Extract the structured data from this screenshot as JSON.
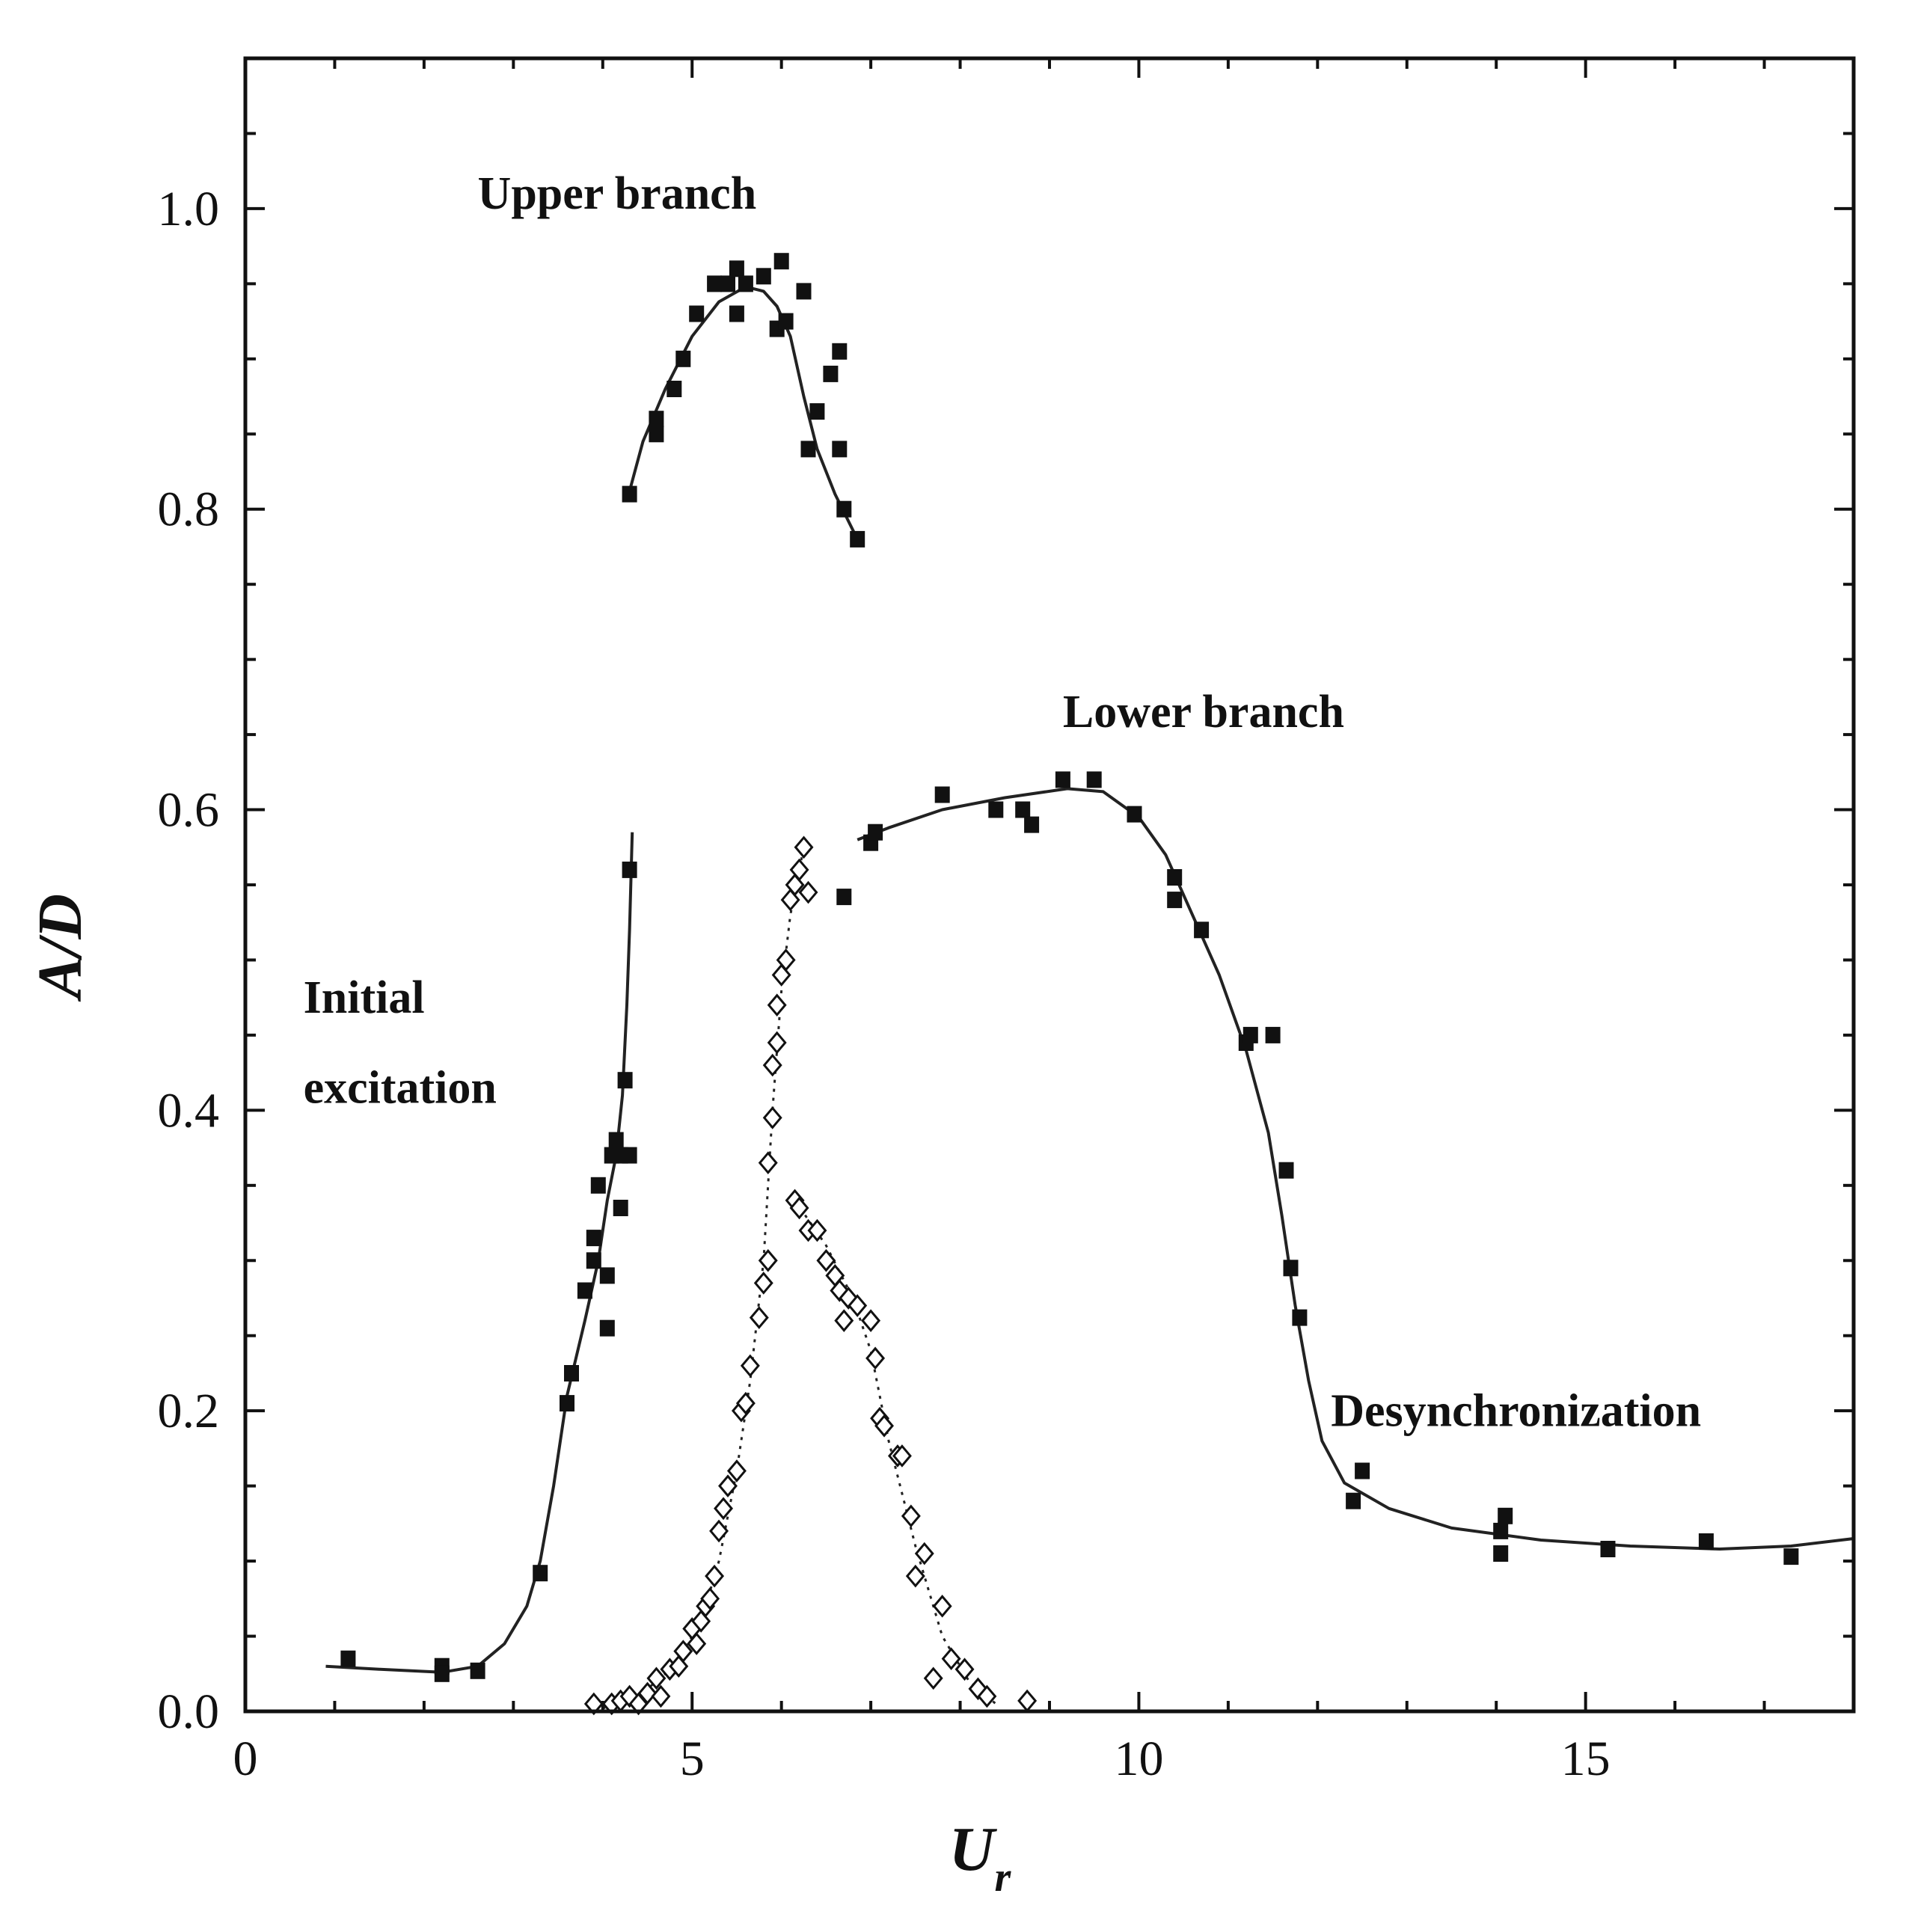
{
  "chart_data": {
    "type": "scatter",
    "xlim": [
      0,
      18
    ],
    "ylim": [
      0,
      1.1
    ],
    "x_ticks": [
      0,
      5,
      10,
      15
    ],
    "x_tick_labels": [
      "0",
      "5",
      "10",
      "15"
    ],
    "y_ticks": [
      0,
      0.2,
      0.4,
      0.6,
      0.8,
      1.0
    ],
    "y_tick_labels": [
      "0.0",
      "0.2",
      "0.4",
      "0.6",
      "0.8",
      "1.0"
    ],
    "xlabel": "U",
    "xlabel_sub": "r",
    "ylabel": "A/D",
    "grid": false,
    "annotations": [
      {
        "text": "Upper branch",
        "x": 2.6,
        "y": 1.0
      },
      {
        "text": "Lower branch",
        "x": 9.15,
        "y": 0.655
      },
      {
        "text": "Initial",
        "x": 0.65,
        "y": 0.465
      },
      {
        "text": "excitation",
        "x": 0.65,
        "y": 0.405
      },
      {
        "text": "Desynchronization",
        "x": 12.15,
        "y": 0.19
      }
    ],
    "series": [
      {
        "marker": "filled-square",
        "values": [
          [
            1.15,
            0.035
          ],
          [
            2.2,
            0.03
          ],
          [
            2.2,
            0.025
          ],
          [
            2.6,
            0.027
          ],
          [
            3.3,
            0.092
          ],
          [
            3.6,
            0.205
          ],
          [
            3.65,
            0.225
          ],
          [
            3.8,
            0.28
          ],
          [
            3.9,
            0.315
          ],
          [
            3.9,
            0.3
          ],
          [
            3.95,
            0.35
          ],
          [
            4.05,
            0.255
          ],
          [
            4.05,
            0.29
          ],
          [
            4.1,
            0.37
          ],
          [
            4.15,
            0.38
          ],
          [
            4.2,
            0.335
          ],
          [
            4.2,
            0.37
          ],
          [
            4.25,
            0.42
          ],
          [
            4.3,
            0.37
          ],
          [
            4.3,
            0.56
          ],
          [
            4.3,
            0.81
          ],
          [
            4.6,
            0.86
          ],
          [
            4.6,
            0.85
          ],
          [
            4.8,
            0.88
          ],
          [
            4.9,
            0.9
          ],
          [
            5.05,
            0.93
          ],
          [
            5.25,
            0.95
          ],
          [
            5.4,
            0.95
          ],
          [
            5.5,
            0.93
          ],
          [
            5.5,
            0.96
          ],
          [
            5.6,
            0.95
          ],
          [
            5.8,
            0.955
          ],
          [
            5.95,
            0.92
          ],
          [
            6.0,
            0.965
          ],
          [
            6.05,
            0.925
          ],
          [
            6.25,
            0.945
          ],
          [
            6.3,
            0.84
          ],
          [
            6.4,
            0.865
          ],
          [
            6.55,
            0.89
          ],
          [
            6.65,
            0.905
          ],
          [
            6.65,
            0.84
          ],
          [
            6.7,
            0.8
          ],
          [
            6.85,
            0.78
          ],
          [
            6.7,
            0.542
          ],
          [
            7.0,
            0.578
          ],
          [
            7.05,
            0.585
          ],
          [
            7.8,
            0.61
          ],
          [
            8.4,
            0.6
          ],
          [
            8.7,
            0.6
          ],
          [
            8.8,
            0.59
          ],
          [
            9.15,
            0.62
          ],
          [
            9.5,
            0.62
          ],
          [
            9.95,
            0.597
          ],
          [
            10.4,
            0.555
          ],
          [
            10.4,
            0.54
          ],
          [
            10.7,
            0.52
          ],
          [
            11.2,
            0.445
          ],
          [
            11.25,
            0.45
          ],
          [
            11.5,
            0.45
          ],
          [
            11.65,
            0.36
          ],
          [
            11.7,
            0.295
          ],
          [
            11.8,
            0.262
          ],
          [
            12.4,
            0.14
          ],
          [
            12.5,
            0.16
          ],
          [
            14.05,
            0.12
          ],
          [
            14.05,
            0.105
          ],
          [
            14.1,
            0.13
          ],
          [
            15.25,
            0.108
          ],
          [
            16.35,
            0.113
          ],
          [
            17.3,
            0.103
          ]
        ]
      },
      {
        "marker": "open-diamond",
        "values": [
          [
            3.9,
            0.005
          ],
          [
            4.1,
            0.005
          ],
          [
            4.2,
            0.007
          ],
          [
            4.3,
            0.01
          ],
          [
            4.4,
            0.005
          ],
          [
            4.5,
            0.012
          ],
          [
            4.6,
            0.022
          ],
          [
            4.65,
            0.01
          ],
          [
            4.75,
            0.028
          ],
          [
            4.85,
            0.03
          ],
          [
            4.9,
            0.04
          ],
          [
            5.0,
            0.055
          ],
          [
            5.05,
            0.045
          ],
          [
            5.1,
            0.06
          ],
          [
            5.15,
            0.07
          ],
          [
            5.2,
            0.075
          ],
          [
            5.25,
            0.09
          ],
          [
            5.3,
            0.12
          ],
          [
            5.35,
            0.135
          ],
          [
            5.4,
            0.15
          ],
          [
            5.5,
            0.16
          ],
          [
            5.55,
            0.2
          ],
          [
            5.6,
            0.205
          ],
          [
            5.65,
            0.23
          ],
          [
            5.75,
            0.262
          ],
          [
            5.8,
            0.285
          ],
          [
            5.85,
            0.3
          ],
          [
            5.85,
            0.365
          ],
          [
            5.9,
            0.395
          ],
          [
            5.9,
            0.43
          ],
          [
            5.95,
            0.445
          ],
          [
            5.95,
            0.47
          ],
          [
            6.0,
            0.49
          ],
          [
            6.05,
            0.5
          ],
          [
            6.1,
            0.54
          ],
          [
            6.15,
            0.55
          ],
          [
            6.2,
            0.56
          ],
          [
            6.25,
            0.575
          ],
          [
            6.3,
            0.545
          ],
          [
            6.15,
            0.34
          ],
          [
            6.2,
            0.335
          ],
          [
            6.3,
            0.32
          ],
          [
            6.4,
            0.32
          ],
          [
            6.5,
            0.3
          ],
          [
            6.6,
            0.29
          ],
          [
            6.65,
            0.28
          ],
          [
            6.7,
            0.26
          ],
          [
            6.75,
            0.275
          ],
          [
            6.85,
            0.27
          ],
          [
            7.0,
            0.26
          ],
          [
            7.05,
            0.235
          ],
          [
            7.1,
            0.195
          ],
          [
            7.15,
            0.19
          ],
          [
            7.3,
            0.17
          ],
          [
            7.35,
            0.17
          ],
          [
            7.45,
            0.13
          ],
          [
            7.5,
            0.09
          ],
          [
            7.6,
            0.105
          ],
          [
            7.7,
            0.022
          ],
          [
            7.8,
            0.07
          ],
          [
            7.9,
            0.035
          ],
          [
            8.05,
            0.028
          ],
          [
            8.2,
            0.015
          ],
          [
            8.3,
            0.01
          ],
          [
            8.75,
            0.007
          ]
        ]
      }
    ],
    "curves": [
      {
        "name": "",
        "style": "solid",
        "values": [
          [
            0.9,
            0.03
          ],
          [
            1.5,
            0.028
          ],
          [
            2.2,
            0.026
          ],
          [
            2.6,
            0.03
          ],
          [
            2.9,
            0.045
          ],
          [
            3.15,
            0.07
          ],
          [
            3.3,
            0.1
          ],
          [
            3.45,
            0.15
          ],
          [
            3.6,
            0.21
          ],
          [
            3.8,
            0.26
          ],
          [
            3.95,
            0.3
          ],
          [
            4.05,
            0.34
          ],
          [
            4.15,
            0.37
          ],
          [
            4.22,
            0.41
          ],
          [
            4.27,
            0.47
          ],
          [
            4.3,
            0.52
          ],
          [
            4.33,
            0.585
          ]
        ]
      },
      {
        "name": "",
        "style": "solid",
        "values": [
          [
            4.3,
            0.812
          ],
          [
            4.45,
            0.845
          ],
          [
            4.7,
            0.88
          ],
          [
            5.0,
            0.915
          ],
          [
            5.3,
            0.938
          ],
          [
            5.6,
            0.948
          ],
          [
            5.8,
            0.945
          ],
          [
            5.95,
            0.935
          ],
          [
            6.1,
            0.915
          ],
          [
            6.25,
            0.875
          ],
          [
            6.4,
            0.84
          ],
          [
            6.6,
            0.81
          ],
          [
            6.85,
            0.78
          ]
        ]
      },
      {
        "name": "",
        "style": "solid",
        "values": [
          [
            6.85,
            0.58
          ],
          [
            7.2,
            0.588
          ],
          [
            7.8,
            0.6
          ],
          [
            8.5,
            0.608
          ],
          [
            9.2,
            0.614
          ],
          [
            9.6,
            0.612
          ],
          [
            10.0,
            0.595
          ],
          [
            10.3,
            0.57
          ],
          [
            10.6,
            0.53
          ],
          [
            10.9,
            0.49
          ],
          [
            11.2,
            0.44
          ],
          [
            11.45,
            0.385
          ],
          [
            11.6,
            0.33
          ],
          [
            11.75,
            0.27
          ],
          [
            11.9,
            0.22
          ],
          [
            12.05,
            0.18
          ],
          [
            12.3,
            0.152
          ],
          [
            12.8,
            0.135
          ],
          [
            13.5,
            0.122
          ],
          [
            14.5,
            0.114
          ],
          [
            15.5,
            0.11
          ],
          [
            16.5,
            0.108
          ],
          [
            17.3,
            0.11
          ],
          [
            18.0,
            0.115
          ]
        ]
      },
      {
        "name": "",
        "style": "dotted",
        "values": [
          [
            3.9,
            0.0
          ],
          [
            4.4,
            0.01
          ],
          [
            4.8,
            0.03
          ],
          [
            5.1,
            0.06
          ],
          [
            5.3,
            0.1
          ],
          [
            5.5,
            0.16
          ],
          [
            5.65,
            0.22
          ],
          [
            5.8,
            0.3
          ],
          [
            5.9,
            0.4
          ],
          [
            6.0,
            0.48
          ],
          [
            6.1,
            0.53
          ],
          [
            6.25,
            0.575
          ]
        ]
      },
      {
        "name": "",
        "style": "dotted",
        "values": [
          [
            6.15,
            0.34
          ],
          [
            6.5,
            0.31
          ],
          [
            6.8,
            0.275
          ],
          [
            7.0,
            0.24
          ],
          [
            7.2,
            0.18
          ],
          [
            7.5,
            0.11
          ],
          [
            7.8,
            0.05
          ],
          [
            8.1,
            0.02
          ],
          [
            8.4,
            0.005
          ]
        ]
      }
    ]
  }
}
